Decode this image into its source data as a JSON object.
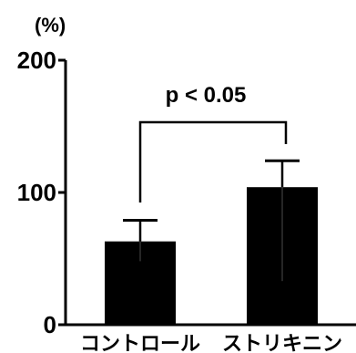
{
  "chart_data": {
    "type": "bar",
    "ylabel": "(%)",
    "categories": [
      "コントロール",
      "ストリキニン"
    ],
    "values": [
      63,
      104
    ],
    "error_upper": [
      79,
      124
    ],
    "error_lower": [
      48,
      33
    ],
    "ylim": [
      0,
      200
    ],
    "yticks": [
      0,
      100,
      200
    ],
    "annotation": "p < 0.05",
    "grid": false,
    "legend": "none",
    "bar_color": "#000000"
  }
}
